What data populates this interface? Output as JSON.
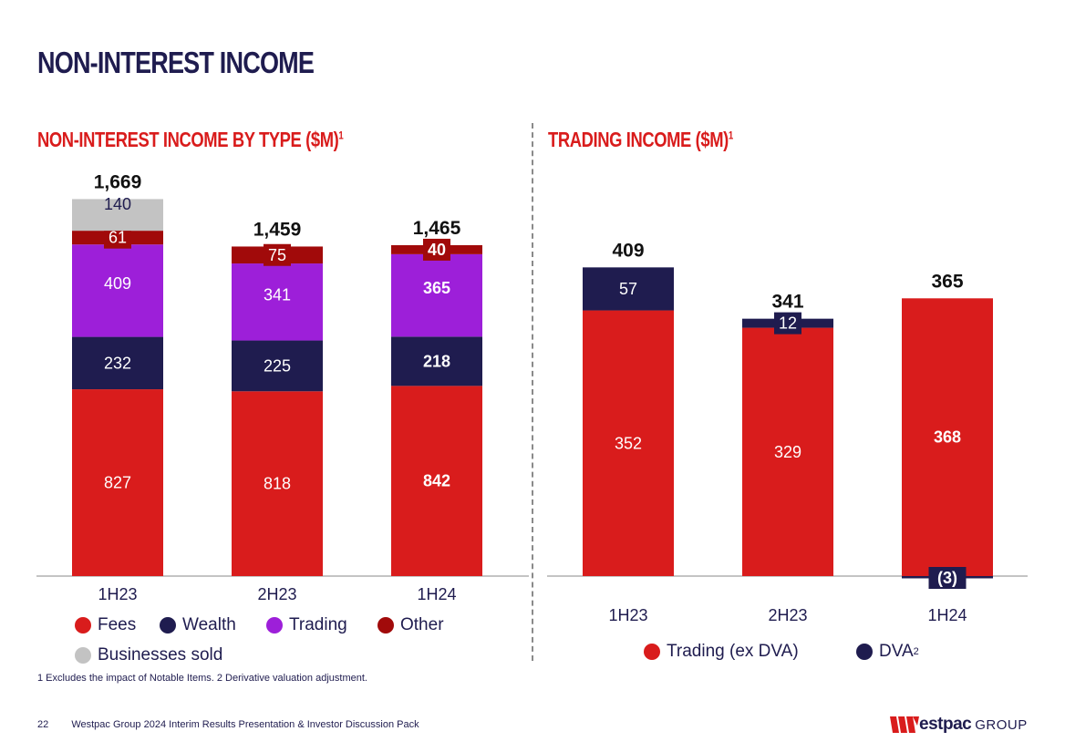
{
  "page": {
    "title": "NON-INTEREST INCOME",
    "footnote": "1 Excludes the impact of Notable Items. 2 Derivative valuation adjustment.",
    "page_number": "22",
    "footer_text": "Westpac Group 2024 Interim Results Presentation & Investor Discussion Pack",
    "logo_wordmark": "estpac",
    "logo_group": "GROUP",
    "colors": {
      "red": "#d91c1c",
      "navy": "#1f1c4f",
      "purple": "#9d1fd9",
      "darkred": "#a10a0a",
      "grey": "#c3c3c3"
    }
  },
  "chart_data": [
    {
      "type": "bar",
      "stacked": true,
      "title": "NON-INTEREST INCOME BY TYPE ($M)",
      "title_sup": "1",
      "categories": [
        "1H23",
        "2H23",
        "1H24"
      ],
      "series": [
        {
          "name": "Fees",
          "color": "#d91c1c",
          "values": [
            827,
            818,
            842
          ],
          "labels": [
            "827",
            "818",
            "842"
          ],
          "label_style": "white"
        },
        {
          "name": "Wealth",
          "color": "#1f1c4f",
          "values": [
            232,
            225,
            218
          ],
          "labels": [
            "232",
            "225",
            "218"
          ],
          "label_style": "white"
        },
        {
          "name": "Trading",
          "color": "#9d1fd9",
          "values": [
            409,
            341,
            365
          ],
          "labels": [
            "409",
            "341",
            "365"
          ],
          "label_style": "white"
        },
        {
          "name": "Other",
          "color": "#a10a0a",
          "values": [
            61,
            75,
            40
          ],
          "labels": [
            "61",
            "75",
            "40"
          ],
          "label_style": "box-darkred"
        },
        {
          "name": "Businesses sold",
          "color": "#c3c3c3",
          "values": [
            140,
            0,
            0
          ],
          "labels": [
            "140",
            "",
            ""
          ],
          "label_style": "dark"
        }
      ],
      "totals": [
        "1,669",
        "1,459",
        "1,465"
      ],
      "bold_category": "1H24",
      "ylim": [
        0,
        1669
      ],
      "legend": [
        {
          "name": "Fees",
          "color": "#d91c1c"
        },
        {
          "name": "Wealth",
          "color": "#1f1c4f"
        },
        {
          "name": "Trading",
          "color": "#9d1fd9"
        },
        {
          "name": "Other",
          "color": "#a10a0a"
        },
        {
          "name": "Businesses sold",
          "color": "#c3c3c3"
        }
      ]
    },
    {
      "type": "bar",
      "stacked": true,
      "title": "TRADING INCOME ($M)",
      "title_sup": "1",
      "categories": [
        "1H23",
        "2H23",
        "1H24"
      ],
      "series": [
        {
          "name": "Trading (ex DVA)",
          "color": "#d91c1c",
          "values": [
            352,
            329,
            368
          ],
          "labels": [
            "352",
            "329",
            "368"
          ],
          "label_style": "white"
        },
        {
          "name": "DVA",
          "color": "#1f1c4f",
          "values": [
            57,
            12,
            -3
          ],
          "labels": [
            "57",
            "12",
            "(3)"
          ],
          "label_style": "white"
        }
      ],
      "totals": [
        "409",
        "341",
        "365"
      ],
      "bold_category": "1H24",
      "ylim": [
        -3,
        409
      ],
      "legend": [
        {
          "name": "Trading (ex DVA)",
          "color": "#d91c1c",
          "sup": ""
        },
        {
          "name": "DVA",
          "color": "#1f1c4f",
          "sup": "2"
        }
      ]
    }
  ]
}
